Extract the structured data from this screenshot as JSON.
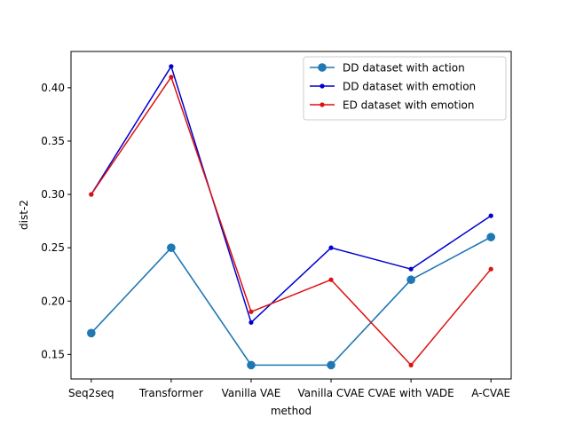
{
  "chart_data": {
    "type": "line",
    "title": "",
    "xlabel": "method",
    "ylabel": "dist-2",
    "categories": [
      "Seq2seq",
      "Transformer",
      "Vanilla VAE",
      "Vanilla CVAE",
      "CVAE with VADE",
      "A-CVAE"
    ],
    "ylim": [
      0.127,
      0.434
    ],
    "yticks": [
      0.15,
      0.2,
      0.25,
      0.3,
      0.35,
      0.4
    ],
    "ytick_labels": [
      "0.15",
      "0.20",
      "0.25",
      "0.30",
      "0.35",
      "0.40"
    ],
    "grid": false,
    "legend_position": "top-right",
    "series": [
      {
        "name": "DD dataset with action",
        "color": "#1f77b4",
        "marker": "large-circle",
        "values": [
          0.17,
          0.25,
          0.14,
          0.14,
          0.22,
          0.26
        ]
      },
      {
        "name": "DD dataset with emotion",
        "color": "#0000cc",
        "marker": "small-dot",
        "values": [
          0.3,
          0.42,
          0.18,
          0.25,
          0.23,
          0.28
        ]
      },
      {
        "name": "ED dataset with emotion",
        "color": "#dd1111",
        "marker": "small-dot",
        "values": [
          0.3,
          0.41,
          0.19,
          0.22,
          0.14,
          0.23
        ]
      }
    ]
  }
}
